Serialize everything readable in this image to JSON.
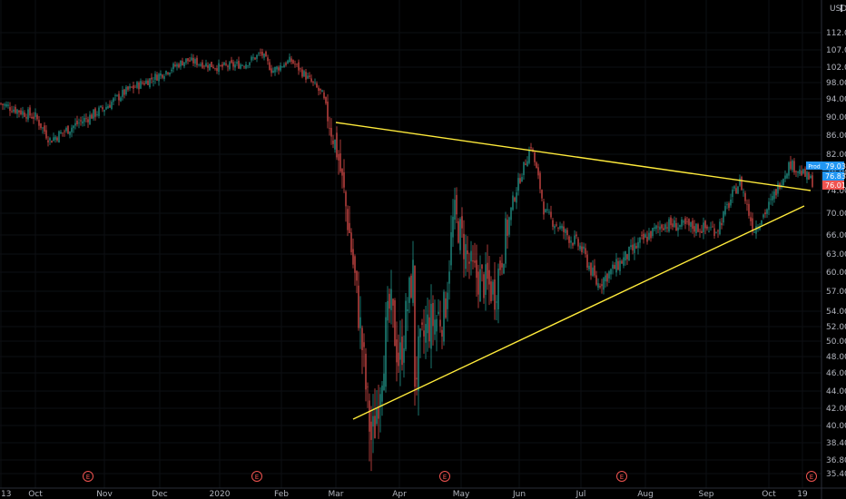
{
  "chart_data": {
    "type": "candlestick",
    "currency_label": "USD",
    "x_labels": [
      "13",
      "Oct",
      "Nov",
      "Dec",
      "2020",
      "Feb",
      "Mar",
      "Apr",
      "May",
      "Jun",
      "Jul",
      "Aug",
      "Sep",
      "Oct",
      "19"
    ],
    "y_labels": [
      "35.40",
      "36.80",
      "38.40",
      "40.00",
      "42.00",
      "44.00",
      "46.00",
      "48.00",
      "50.00",
      "52.00",
      "54.00",
      "57.00",
      "60.00",
      "63.00",
      "66.00",
      "70.00",
      "74.00",
      "78.00",
      "82.00",
      "86.00",
      "90.00",
      "94.00",
      "98.00",
      "102.00",
      "107.00",
      "112.00"
    ],
    "price_tags": [
      {
        "label": "Prod",
        "value": "79.03",
        "color": "#2196f3"
      },
      {
        "label": "",
        "value": "76.83",
        "color": "#2196f3"
      },
      {
        "label": "",
        "value": "76.01",
        "color": "#ef5350"
      }
    ],
    "earnings_markers": [
      "E",
      "E",
      "E",
      "E",
      "E"
    ],
    "up_color": "#26a69a",
    "down_color": "#ef5350",
    "trendline_color": "#ffeb3b",
    "trendlines": [
      {
        "from": [
          "Mar",
          89.0
        ],
        "to": [
          "Oct 19",
          74.0
        ]
      },
      {
        "from": [
          "Mar 16",
          40.5
        ],
        "to": [
          "Oct 19",
          72.0
        ]
      }
    ],
    "close_series": [
      [
        "Sep 2019",
        93
      ],
      [
        "Oct",
        90
      ],
      [
        "Oct mid",
        85
      ],
      [
        "Nov",
        92
      ],
      [
        "Nov mid",
        96
      ],
      [
        "Dec",
        100
      ],
      [
        "Dec mid",
        104
      ],
      [
        "Jan 2020",
        102
      ],
      [
        "Jan mid",
        103
      ],
      [
        "Feb",
        106
      ],
      [
        "Feb mid",
        101
      ],
      [
        "Feb end",
        104
      ],
      [
        "Mar",
        95
      ],
      [
        "Mar 9",
        82
      ],
      [
        "Mar 16",
        42
      ],
      [
        "Mar 23",
        38
      ],
      [
        "Mar 30",
        55
      ],
      [
        "Apr 6",
        47
      ],
      [
        "Apr 13",
        60
      ],
      [
        "Apr 20",
        41
      ],
      [
        "Apr 27",
        52
      ],
      [
        "May",
        54
      ],
      [
        "May 11",
        70
      ],
      [
        "May 18",
        60
      ],
      [
        "May 25",
        57
      ],
      [
        "Jun",
        72
      ],
      [
        "Jun 8",
        84
      ],
      [
        "Jun 15",
        70
      ],
      [
        "Jun 29",
        66
      ],
      [
        "Jul",
        64
      ],
      [
        "Jul 15",
        58
      ],
      [
        "Aug",
        64
      ],
      [
        "Aug 15",
        68
      ],
      [
        "Sep",
        67
      ],
      [
        "Sep 15",
        76
      ],
      [
        "Sep 25",
        67
      ],
      [
        "Oct",
        72
      ],
      [
        "Oct 10",
        80
      ],
      [
        "Oct 19",
        76
      ]
    ]
  }
}
